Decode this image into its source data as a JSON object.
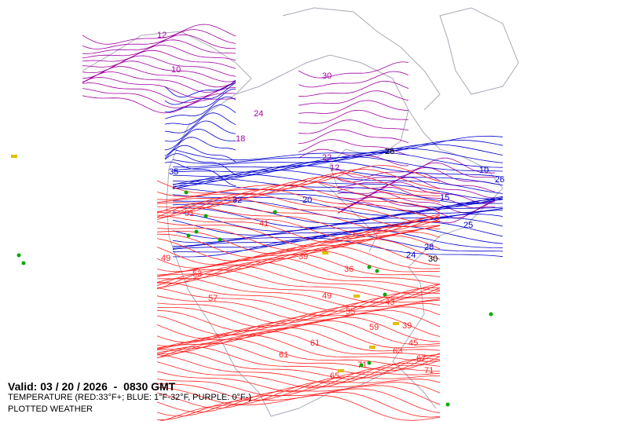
{
  "map": {
    "valid_time": "Valid: 03 / 20 / 2026  -  0830 GMT",
    "layer_legend": "TEMPERATURE (RED:33°F+; BLUE: 1°F-32°F, PURPLE: 0°F-)",
    "layer_2": "PLOTTED WEATHER",
    "colors": {
      "warm": "#ff2020",
      "cold": "#0000cc",
      "very_cold": "#a000a0",
      "coast": "#a8a8b8",
      "weather_rain": "#00aa00",
      "weather_fog": "#e0c000"
    },
    "contour_labels": [
      "12",
      "10",
      "24",
      "30",
      "26",
      "22",
      "18",
      "12",
      "20",
      "32",
      "28",
      "24",
      "30",
      "41",
      "49",
      "53",
      "57",
      "61",
      "65",
      "71",
      "45",
      "39",
      "36",
      "51",
      "61",
      "71",
      "39",
      "43",
      "49",
      "55",
      "59",
      "63",
      "67",
      "35",
      "25",
      "15",
      "10",
      "26"
    ]
  }
}
